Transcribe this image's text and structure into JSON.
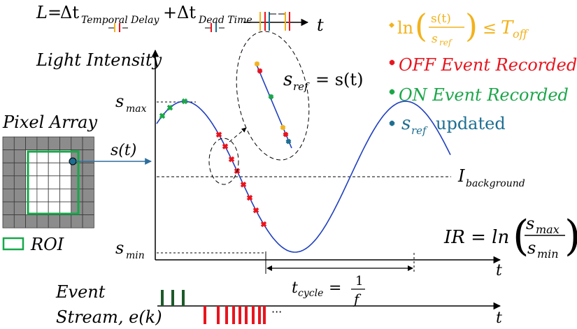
{
  "equation": {
    "lhs": "L=",
    "delta": "Δt",
    "term1_sub": "Temporal Delay",
    "plus": "+",
    "term2_sub": "Dead Time",
    "t_label": "t"
  },
  "legend": {
    "off_threshold": {
      "text_ln": "ln",
      "num": "s(t)",
      "den_s": "s",
      "den_sub": "ref",
      "rel": "≤",
      "T": "T",
      "T_sub": "off",
      "color": "#f2b21c"
    },
    "off_event": {
      "text": "OFF Event Recorded",
      "color": "#e8141e"
    },
    "on_event": {
      "text": "ON Event Recorded",
      "color": "#1ca64a"
    },
    "sref_updated": {
      "s": "s",
      "sub": "ref",
      "text": "updated",
      "color": "#1e6e91"
    }
  },
  "plot": {
    "ylabel": "Light Intensity",
    "smax_s": "s",
    "smax_sub": "max",
    "smin_s": "s",
    "smin_sub": "min",
    "background_I": "I",
    "background_sub": "background",
    "t_label": "t",
    "st_label": "s(t)",
    "zoom_label": {
      "s": "s",
      "sub": "ref",
      "rest": "= s(t)"
    },
    "ir_label": {
      "lhs": "IR = ln",
      "num_s": "s",
      "num_sub": "max",
      "den_s": "s",
      "den_sub": "min"
    },
    "tcycle": {
      "t": "t",
      "sub": "cycle",
      "eq": "=",
      "num": "1",
      "den": "f"
    },
    "curve_color": "#1f3fbf"
  },
  "pixel_array": {
    "title": "Pixel Array",
    "roi_label": "ROI",
    "grid_color": "#8c8c8c",
    "roi_color": "#17a84a"
  },
  "event_stream": {
    "label_line1": "Event",
    "label_line2": "Stream, e(k)",
    "t_label": "t",
    "ellipsis": "···",
    "on_color": "#1e5a2a",
    "off_color": "#e8141e"
  }
}
